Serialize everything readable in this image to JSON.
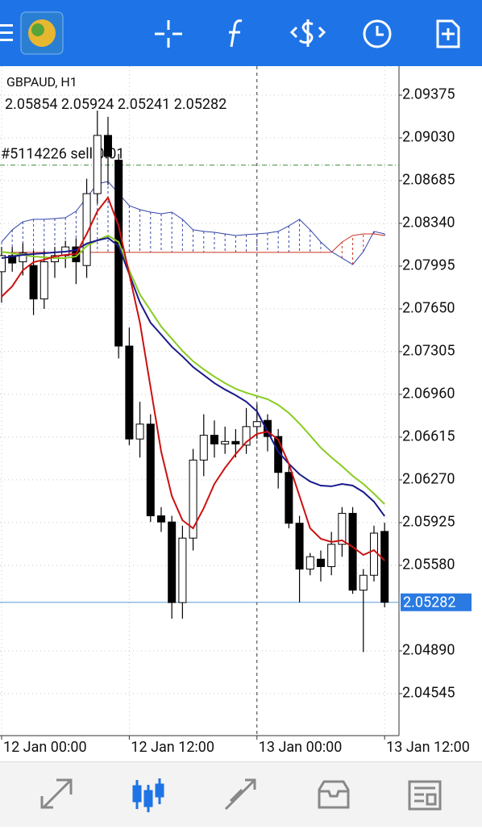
{
  "chart_data": {
    "type": "candlestick",
    "symbol_label": "GBPAUD, H1",
    "order_label": "#5114226 sell 0.01",
    "order_price": 2.0881,
    "current_price_color": "#5b9bd5",
    "x": [
      0,
      1,
      2,
      3,
      4,
      5,
      6,
      7,
      8,
      9,
      10,
      11,
      12,
      13,
      14,
      15,
      16,
      17,
      18,
      19,
      20,
      21,
      22,
      23,
      24,
      25,
      26,
      27,
      28,
      29,
      30,
      31,
      32,
      33,
      34,
      35,
      36
    ],
    "open": [
      2.0795,
      2.0808,
      2.0803,
      2.08,
      2.0773,
      2.0803,
      2.0808,
      2.0815,
      2.08,
      2.0858,
      2.0905,
      2.0885,
      2.0735,
      2.066,
      2.0672,
      2.0598,
      2.0593,
      2.0528,
      2.058,
      2.0643,
      2.0663,
      2.0656,
      2.0658,
      2.0655,
      2.067,
      2.0675,
      2.0662,
      2.0633,
      2.0592,
      2.0555,
      2.0563,
      2.0557,
      2.0575,
      2.06,
      2.0538,
      2.055,
      2.05854
    ],
    "high": [
      2.0815,
      2.0815,
      2.0818,
      2.0812,
      2.0812,
      2.0815,
      2.082,
      2.0822,
      2.087,
      2.0925,
      2.092,
      2.089,
      2.075,
      2.069,
      2.068,
      2.0605,
      2.0598,
      2.059,
      2.0652,
      2.068,
      2.0675,
      2.067,
      2.0668,
      2.0685,
      2.0688,
      2.068,
      2.0668,
      2.064,
      2.0598,
      2.0568,
      2.057,
      2.0585,
      2.0605,
      2.0605,
      2.0555,
      2.059,
      2.05924
    ],
    "low": [
      2.077,
      2.0795,
      2.0792,
      2.076,
      2.0765,
      2.079,
      2.0798,
      2.0785,
      2.079,
      2.085,
      2.0865,
      2.0725,
      2.0655,
      2.0645,
      2.0593,
      2.0585,
      2.0515,
      2.0515,
      2.057,
      2.063,
      2.0645,
      2.0648,
      2.0645,
      2.0648,
      2.066,
      2.065,
      2.062,
      2.0588,
      2.0528,
      2.055,
      2.0545,
      2.055,
      2.0565,
      2.0535,
      2.0488,
      2.0545,
      2.05241
    ],
    "close": [
      2.0808,
      2.0802,
      2.081,
      2.0773,
      2.0803,
      2.0808,
      2.0815,
      2.0803,
      2.0858,
      2.0905,
      2.0888,
      2.0735,
      2.066,
      2.0672,
      2.0598,
      2.0593,
      2.0528,
      2.058,
      2.0643,
      2.0663,
      2.0656,
      2.0658,
      2.0656,
      2.067,
      2.0674,
      2.0662,
      2.0633,
      2.0592,
      2.0555,
      2.0565,
      2.0557,
      2.0575,
      2.06,
      2.0538,
      2.055,
      2.0584,
      2.05282
    ],
    "indicators": [
      {
        "color": "#88cc22",
        "values": [
          2.08112,
          2.08099,
          2.08086,
          2.08073,
          2.08067,
          2.0806,
          2.0806,
          2.08073,
          2.08158,
          2.08203,
          2.08242,
          2.0819,
          2.07962,
          2.07767,
          2.07637,
          2.07507,
          2.07409,
          2.07311,
          2.07227,
          2.07162,
          2.07103,
          2.07051,
          2.07005,
          2.06973,
          2.06947,
          2.06921,
          2.06875,
          2.0681,
          2.06725,
          2.06628,
          2.0653,
          2.06452,
          2.0638,
          2.06302,
          2.06237,
          2.06159,
          2.06074
        ]
      },
      {
        "color": "#1a1a8c",
        "values": [
          2.0806,
          2.08073,
          2.08086,
          2.08093,
          2.08099,
          2.08106,
          2.08112,
          2.08125,
          2.08177,
          2.08203,
          2.08223,
          2.08158,
          2.0793,
          2.07702,
          2.07539,
          2.07442,
          2.07344,
          2.07266,
          2.07181,
          2.07116,
          2.07051,
          2.06999,
          2.06953,
          2.06901,
          2.06823,
          2.0666,
          2.06498,
          2.064,
          2.06315,
          2.06257,
          2.06224,
          2.06218,
          2.06237,
          2.06224,
          2.06172,
          2.06094,
          2.05977
        ]
      },
      {
        "color": "#cc1111",
        "values": [
          2.07748,
          2.07832,
          2.07962,
          2.08027,
          2.08047,
          2.08073,
          2.08086,
          2.08093,
          2.08255,
          2.08438,
          2.08548,
          2.0832,
          2.0793,
          2.07539,
          2.07018,
          2.06498,
          2.0614,
          2.05944,
          2.05879,
          2.06042,
          2.06237,
          2.06367,
          2.06478,
          2.06576,
          2.06641,
          2.0666,
          2.06595,
          2.064,
          2.0614,
          2.05879,
          2.05795,
          2.05769,
          2.05782,
          2.05729,
          2.05664,
          2.05703,
          2.05619
        ]
      }
    ],
    "cloud": {
      "span_a": {
        "color": "#3344aa",
        "values": [
          2.0819,
          2.08288,
          2.08353,
          2.08373,
          2.08373,
          2.08379,
          2.08386,
          2.08438,
          2.08548,
          2.08659,
          2.08678,
          2.08581,
          2.08483,
          2.08451,
          2.08431,
          2.08418,
          2.08431,
          2.08373,
          2.08288,
          2.08275,
          2.08268,
          2.08255,
          2.08242,
          2.08249,
          2.08255,
          2.08262,
          2.08275,
          2.0832,
          2.08373,
          2.08288,
          2.0819,
          2.08112,
          2.0806,
          2.08008,
          2.08112,
          2.08275,
          2.08255
        ]
      },
      "span_b": {
        "color": "#cc3322",
        "values": [
          2.08106,
          2.08106,
          2.08106,
          2.08106,
          2.08106,
          2.08106,
          2.08106,
          2.08106,
          2.08106,
          2.08106,
          2.08106,
          2.08106,
          2.08106,
          2.08106,
          2.08106,
          2.08106,
          2.08106,
          2.08106,
          2.08106,
          2.08106,
          2.08106,
          2.08106,
          2.08106,
          2.08106,
          2.08106,
          2.08106,
          2.08106,
          2.08106,
          2.08106,
          2.08106,
          2.08106,
          2.08106,
          2.0819,
          2.08242,
          2.08255,
          2.08255,
          2.08242
        ]
      }
    },
    "xlim": [
      -0.15,
      37.35
    ],
    "ylim": [
      2.04206,
      2.09609
    ],
    "xticks": [
      {
        "value": 0,
        "label": "12 Jan 00:00"
      },
      {
        "value": 12,
        "label": "12 Jan 12:00"
      },
      {
        "value": 24,
        "label": "13 Jan 00:00"
      },
      {
        "value": 36,
        "label": "13 Jan 12:00"
      }
    ],
    "yticks": [
      2.09375,
      {
        "value": 2.0903,
        "label": "2.09030"
      },
      2.08685,
      {
        "value": 2.0834,
        "label": "2.08340"
      },
      2.07995,
      {
        "value": 2.0765,
        "label": "2.07650"
      },
      2.07305,
      {
        "value": 2.0696,
        "label": "2.06960"
      },
      2.06615,
      {
        "value": 2.0627,
        "label": "2.06270"
      },
      2.05925,
      {
        "value": 2.0558,
        "label": "2.05580"
      },
      {
        "value": 2.0489,
        "label": "2.04890"
      },
      2.04545
    ],
    "grid": true
  }
}
